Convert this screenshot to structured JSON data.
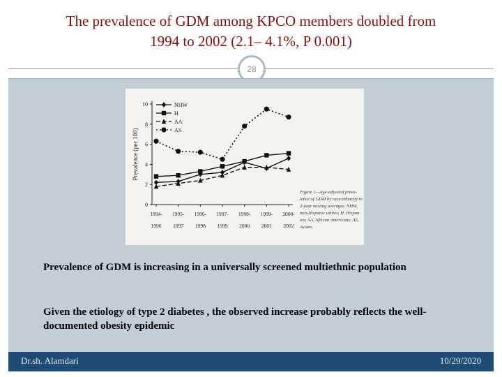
{
  "slide": {
    "title_line1": "The prevalence of GDM among KPCO members doubled from",
    "title_line2": "1994 to 2002 (2.1– 4.1%, P  0.001)",
    "slide_number": "28",
    "bullet1": "Prevalence of GDM is increasing in a universally screened multiethnic population",
    "bullet2": "Given the etiology of type 2 diabetes , the observed increase probably reflects the well-documented obesity epidemic",
    "footer_author": "Dr.sh. Alamdari",
    "footer_date": "10/29/2020"
  },
  "colors": {
    "title": "#8b0d0d",
    "content_bg": "#c3cdd6",
    "footer_bg": "#1f4b75"
  },
  "chart_data": {
    "type": "line",
    "ylabel": "Prevalence (per 100)",
    "ylim": [
      0,
      10
    ],
    "yticks": [
      "0",
      "2",
      "4",
      "6",
      "8",
      "10"
    ],
    "categories": [
      [
        "1994-",
        "1996"
      ],
      [
        "1995-",
        "1997"
      ],
      [
        "1996-",
        "1998"
      ],
      [
        "1997-",
        "1999"
      ],
      [
        "1998-",
        "2000"
      ],
      [
        "1999-",
        "2001"
      ],
      [
        "2000-",
        "2002"
      ]
    ],
    "series": [
      {
        "name": "NHW",
        "marker": "diamond",
        "dash": "solid",
        "values": [
          2.2,
          2.3,
          3.0,
          3.2,
          4.2,
          3.6,
          4.6
        ]
      },
      {
        "name": "H",
        "marker": "square",
        "dash": "solid",
        "values": [
          2.8,
          2.9,
          3.3,
          3.8,
          4.3,
          4.9,
          5.1
        ]
      },
      {
        "name": "AA",
        "marker": "triangle",
        "dash": "dash",
        "values": [
          1.8,
          2.1,
          2.4,
          2.9,
          3.7,
          3.7,
          3.5
        ]
      },
      {
        "name": "AS",
        "marker": "circle",
        "dash": "dot",
        "values": [
          6.3,
          5.3,
          5.2,
          4.5,
          7.8,
          9.5,
          8.7
        ]
      }
    ],
    "legend_position": "top-left",
    "caption": [
      "Figure 1—Age-adjusted preva-",
      "lence of GDM by race/ethnicity in",
      "2-year moving averages. NHW,",
      "non-Hispanic whites; H, Hispan-",
      "ics; AA, African Americans; AS,",
      "Asians."
    ]
  }
}
